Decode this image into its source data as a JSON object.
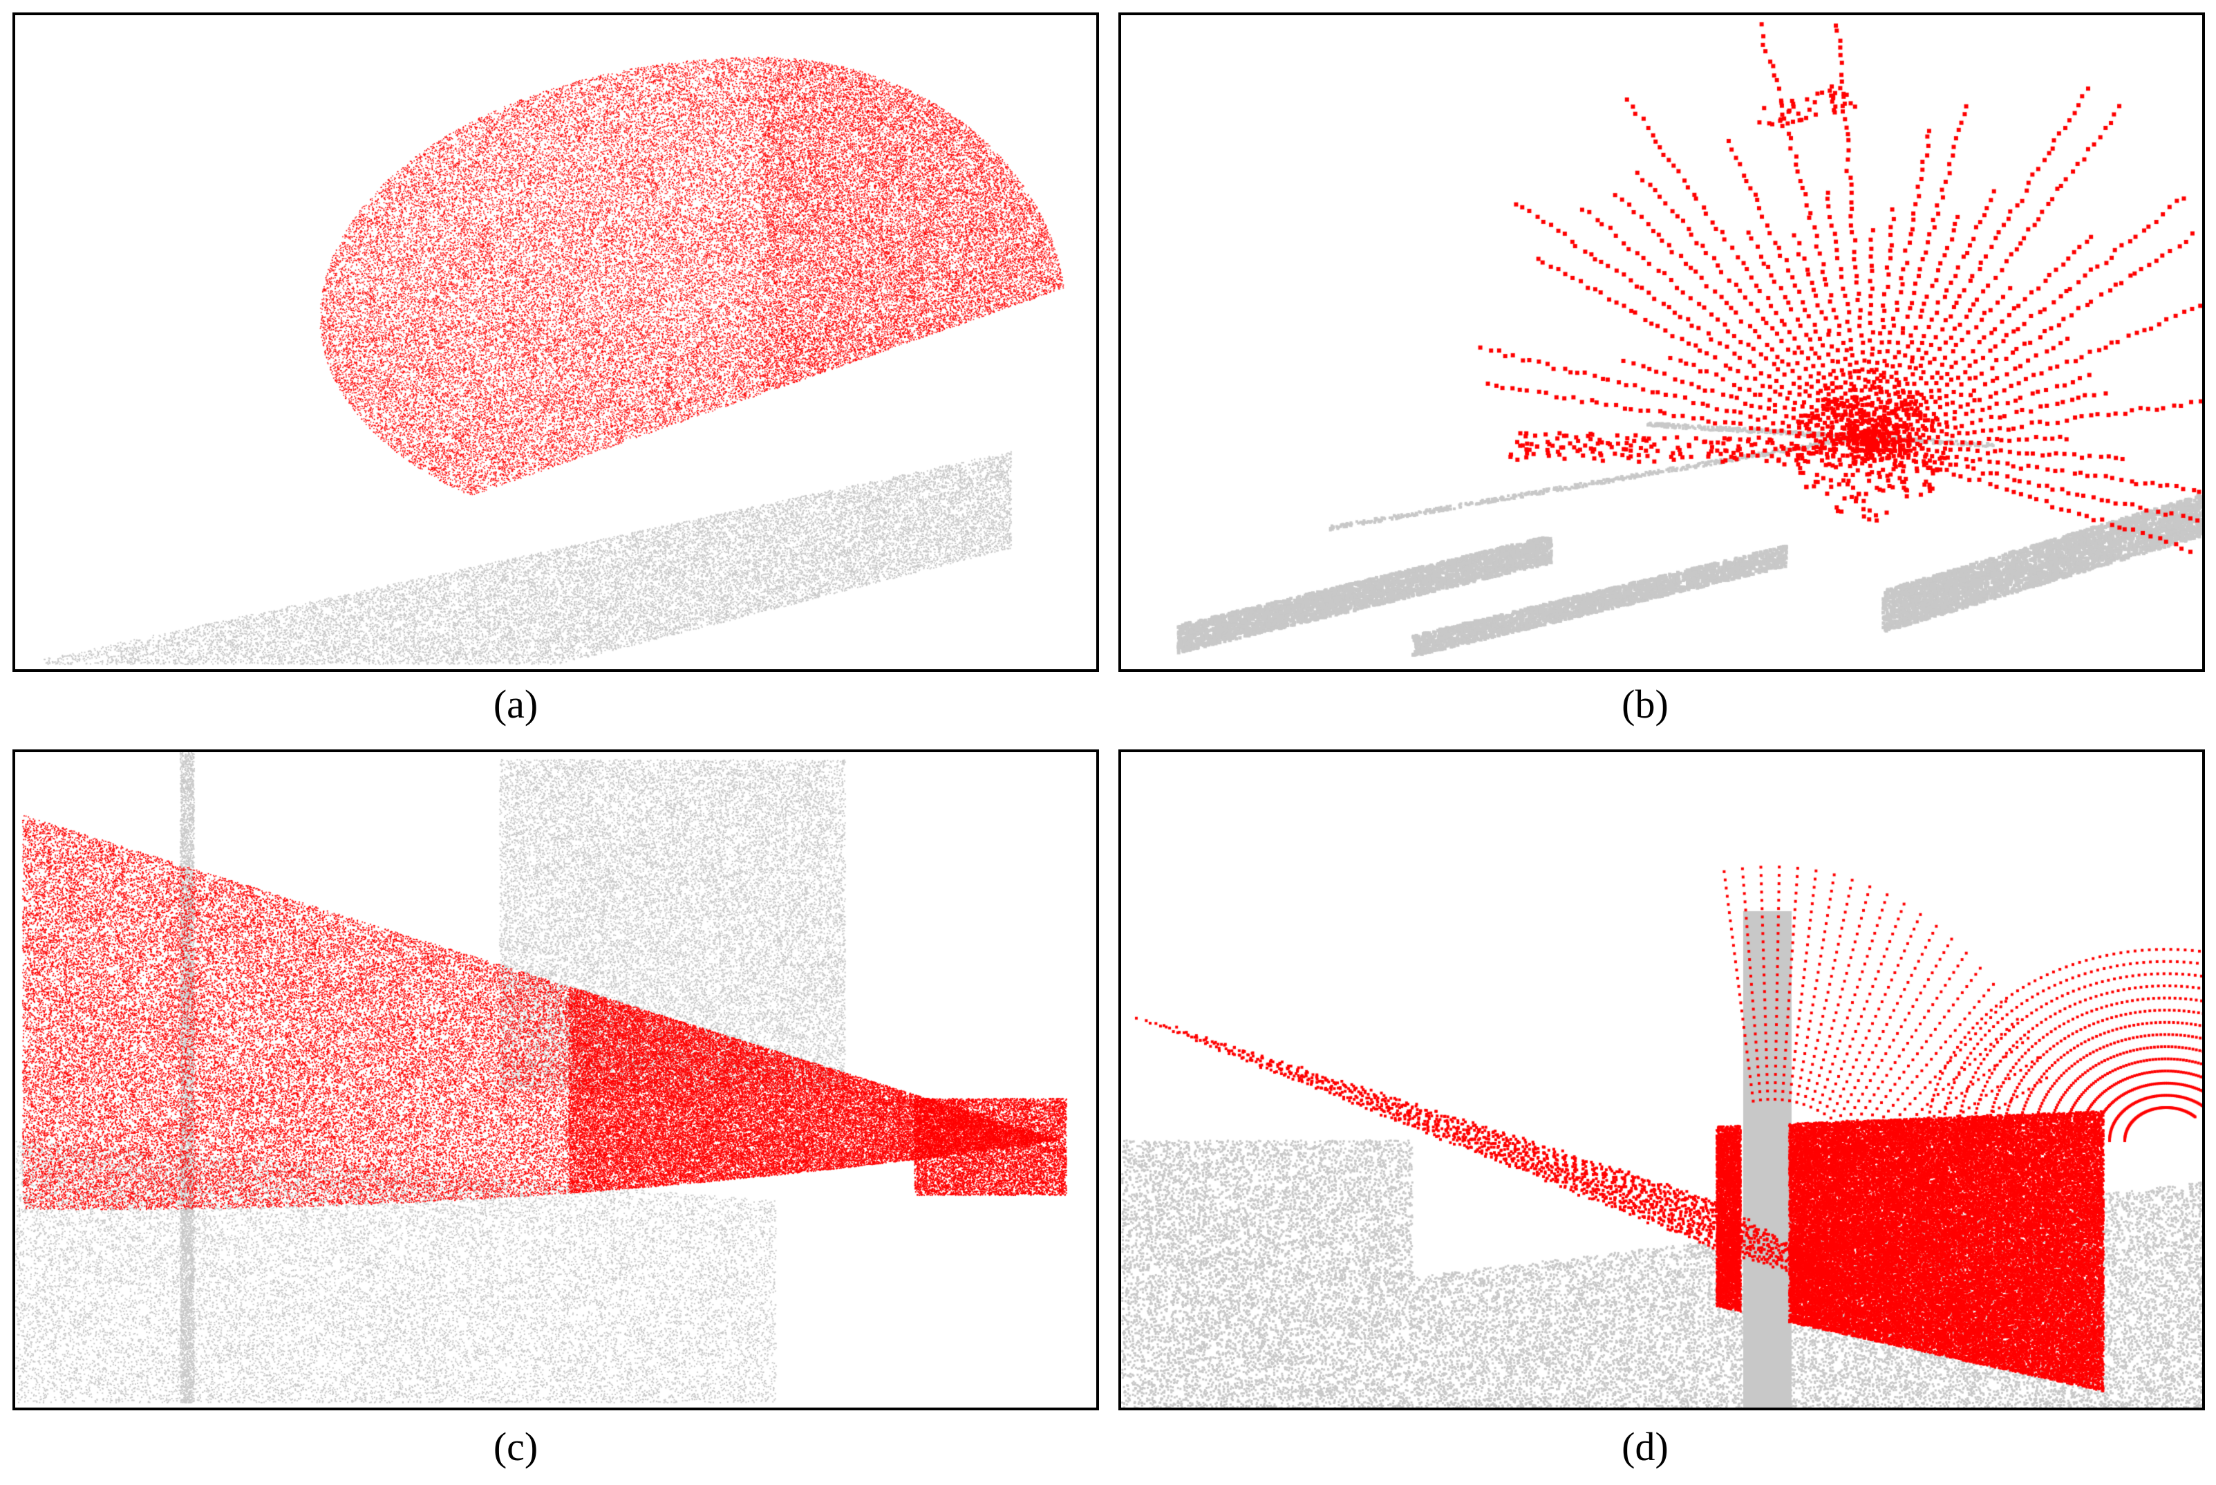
{
  "figure": {
    "colors": {
      "highlight": "#ff0000",
      "background_points": "#c8c8c8",
      "frame": "#000000"
    },
    "panels": [
      {
        "id": "a",
        "caption": "(a)"
      },
      {
        "id": "b",
        "caption": "(b)"
      },
      {
        "id": "c",
        "caption": "(c)"
      },
      {
        "id": "d",
        "caption": "(d)"
      }
    ]
  }
}
